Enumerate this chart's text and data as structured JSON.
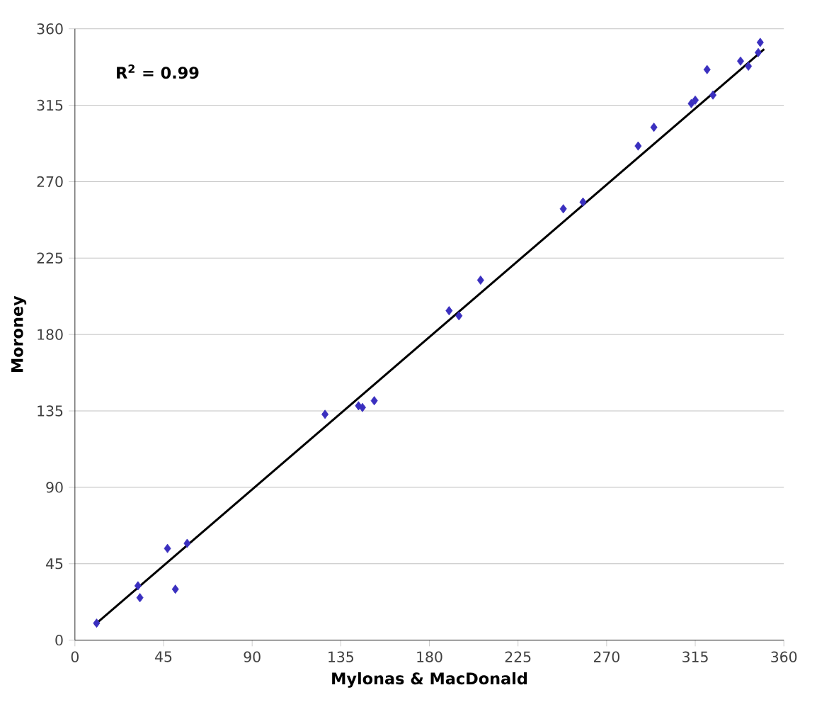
{
  "chart_data": {
    "type": "scatter",
    "xlabel": "Mylonas & MacDonald",
    "ylabel": "Moroney",
    "annotations": [
      "R$^{2}$ = 0.99"
    ],
    "xlim": [
      0,
      360
    ],
    "ylim": [
      0,
      360
    ],
    "xticks": [
      0,
      45,
      90,
      135,
      180,
      225,
      270,
      315,
      360
    ],
    "yticks": [
      0,
      45,
      90,
      135,
      180,
      225,
      270,
      315,
      360
    ],
    "grid": "y",
    "series": [
      {
        "marker": "diamond",
        "color": "#3a2fbf",
        "x": [
          11,
          32,
          33,
          47,
          51,
          57,
          127,
          144,
          146,
          152,
          190,
          195,
          206,
          248,
          258,
          286,
          294,
          313,
          315,
          321,
          324,
          338,
          342,
          347,
          348
        ],
        "values": [
          10,
          32,
          25,
          54,
          30,
          57,
          133,
          138,
          137,
          141,
          194,
          191,
          212,
          254,
          258,
          291,
          302,
          316,
          318,
          336,
          321,
          341,
          338,
          346,
          352
        ]
      },
      {
        "type": "line",
        "marker": "none",
        "color": "#000000",
        "x": [
          10,
          350
        ],
        "values": [
          9,
          348
        ]
      }
    ]
  }
}
